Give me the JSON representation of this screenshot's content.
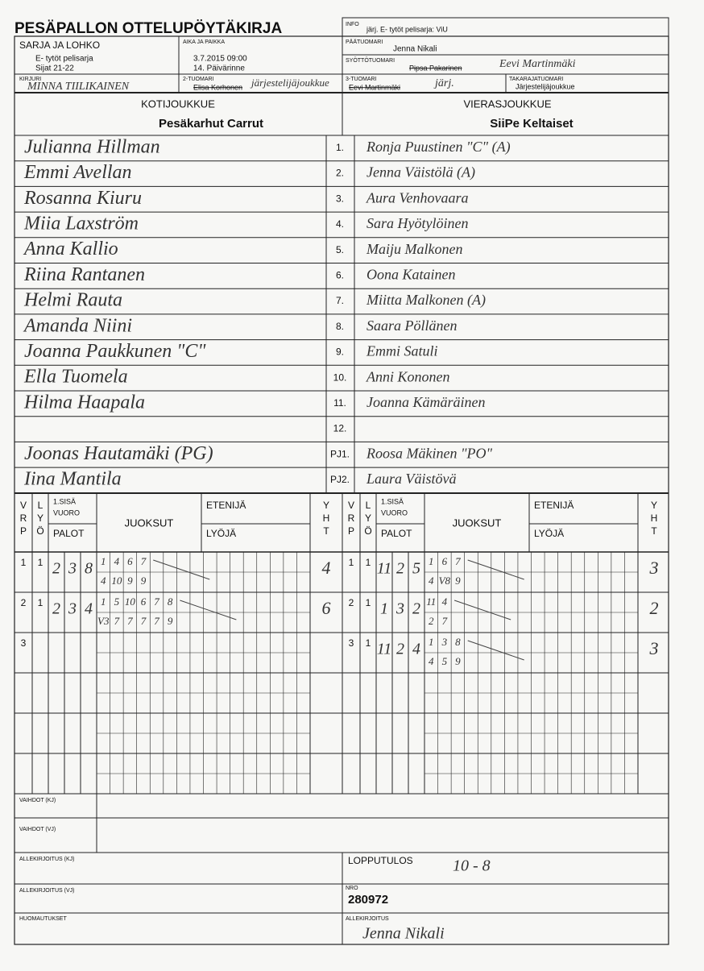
{
  "header": {
    "title": "PESÄPALLON OTTELUPÖYTÄKIRJA",
    "series_label": "SARJA JA LOHKO",
    "series": [
      "E- tytöt pelisarja",
      "Sijat 21-22"
    ],
    "time_label": "AIKA JA PAIKKA",
    "time": [
      "3.7.2015 09:00",
      "14. Päivärinne"
    ],
    "info_label": "INFO",
    "info": "järj. E- tytöt pelisarja: ViU",
    "referee_label": "PÄÄTUOMARI",
    "referee": "Jenna Nikali",
    "pitch_label": "SYÖTTÖTUOMARI",
    "pitch_printed": "Pipsa Pakarinen",
    "pitch_written": "Eevi Martinmäki",
    "scorer_label": "KIRJURI",
    "scorer": "MINNA TIILIKAINEN",
    "ump2_label": "2-TUOMARI",
    "ump2_printed": "Elisa Korhonen",
    "ump2_written": "järjestelijäjoukkue",
    "ump3_label": "3-TUOMARI",
    "ump3_printed": "Eevi Martinmäki",
    "ump3_written": "järj.",
    "back_label": "TAKARAJATUOMARI",
    "back": "Järjestelijäjoukkue"
  },
  "teams": {
    "home_label": "KOTIJOUKKUE",
    "home": "Pesäkarhut Carrut",
    "away_label": "VIERASJOUKKUE",
    "away": "SiiPe Keltaiset"
  },
  "roster": {
    "numbers": [
      "1.",
      "2.",
      "3.",
      "4.",
      "5.",
      "6.",
      "7.",
      "8.",
      "9.",
      "10.",
      "11.",
      "12.",
      "PJ1.",
      "PJ2."
    ],
    "home": [
      "Julianna Hillman",
      "Emmi Avellan",
      "Rosanna Kiuru",
      "Miia Laxström",
      "Anna Kallio",
      "Riina Rantanen",
      "Helmi Rauta",
      "Amanda Niini",
      "Joanna Paukkunen \"C\"",
      "Ella Tuomela",
      "Hilma Haapala",
      null,
      "Joonas Hautamäki (PG)",
      "Iina Mantila"
    ],
    "away": [
      "Ronja Puustinen \"C\" (A)",
      "Jenna Väistölä (A)",
      "Aura Venhovaara",
      "Sara Hyötylöinen",
      "Maiju Malkonen",
      "Oona Katainen",
      "Miitta Malkonen (A)",
      "Saara Pöllänen",
      "Emmi Satuli",
      "Anni Kononen",
      "Joanna Kämäräinen",
      null,
      "Roosa Mäkinen \"PO\"",
      "Laura Väistövä"
    ]
  },
  "scoring": {
    "headers": {
      "vrp": [
        "V",
        "R",
        "P"
      ],
      "lyo": [
        "L",
        "Y",
        "Ö"
      ],
      "first": [
        "1.SISÄ",
        "VUORO"
      ],
      "palot": "PALOT",
      "juoksut": "JUOKSUT",
      "etenija": "ETENIJÄ",
      "lyoja": "LYÖJÄ",
      "yht": [
        "Y",
        "H",
        "T"
      ]
    },
    "home": [
      {
        "vrp": "1",
        "lyo": "1",
        "cells": [
          "2",
          "3",
          "8"
        ],
        "runs_top": [
          "1",
          "4",
          "6",
          "7"
        ],
        "runs_bottom": [
          "4",
          "10",
          "9",
          "9"
        ],
        "yht": "4"
      },
      {
        "vrp": "2",
        "lyo": "1",
        "cells": [
          "2",
          "3",
          "4"
        ],
        "runs_top": [
          "1",
          "5",
          "10",
          "6",
          "7",
          "8"
        ],
        "runs_bottom": [
          "V3",
          "7",
          "7",
          "7",
          "7",
          "9"
        ],
        "yht": "6"
      },
      {
        "vrp": "3"
      }
    ],
    "away": [
      {
        "vrp": "1",
        "lyo": "1",
        "cells": [
          "11",
          "2",
          "5"
        ],
        "runs_top": [
          "1",
          "6",
          "7"
        ],
        "runs_bottom": [
          "4",
          "V8",
          "9"
        ],
        "yht": "3"
      },
      {
        "vrp": "2",
        "lyo": "1",
        "cells": [
          "1",
          "3",
          "2"
        ],
        "runs_top": [
          "11",
          "4"
        ],
        "runs_bottom": [
          "2",
          "7"
        ],
        "yht": "2"
      },
      {
        "vrp": "3",
        "lyo": "1",
        "cells": [
          "11",
          "2",
          "4"
        ],
        "runs_top": [
          "1",
          "3",
          "8"
        ],
        "runs_bottom": [
          "4",
          "5",
          "9"
        ],
        "yht": "3"
      }
    ]
  },
  "footer": {
    "subs_home": "VAIHDOT (KJ)",
    "subs_away": "VAIHDOT (VJ)",
    "sign_home": "ALLEKIRJOITUS (KJ)",
    "sign_away": "ALLEKIRJOITUS (VJ)",
    "notes": "HUOMAUTUKSET",
    "result_label": "LOPPUTULOS",
    "result": "10 - 8",
    "no_label": "NRO",
    "no": "280972",
    "sign_label": "ALLEKIRJOITUS",
    "sign": "Jenna Nikali"
  }
}
